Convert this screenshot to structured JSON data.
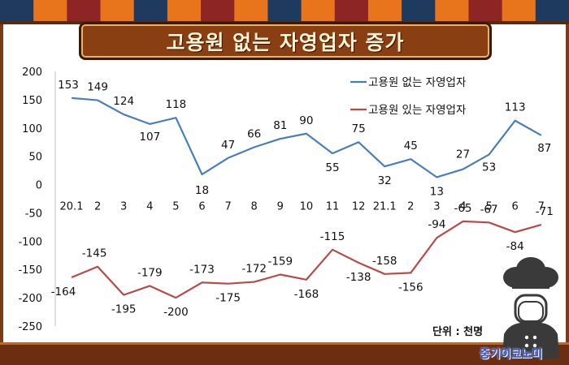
{
  "title": "고용원 없는 자영업자 증가",
  "unit_label": "단위 : 천명",
  "watermark": "중기이코노미",
  "chart_data": {
    "type": "line",
    "title": "고용원 없는 자영업자 증가",
    "categories": [
      "20.1",
      "2",
      "3",
      "4",
      "5",
      "6",
      "7",
      "8",
      "9",
      "10",
      "11",
      "12",
      "21.1",
      "2",
      "3",
      "4",
      "5",
      "6",
      "7"
    ],
    "ylim": [
      -250,
      200
    ],
    "yticks": [
      200,
      150,
      100,
      50,
      0,
      -50,
      -100,
      -150,
      -200,
      -250
    ],
    "grid": false,
    "legend_position": "top-right",
    "series": [
      {
        "name": "고용원 없는 자영업자",
        "color": "#4a7ebb",
        "values": [
          153,
          149,
          124,
          107,
          118,
          18,
          47,
          66,
          81,
          90,
          55,
          75,
          32,
          45,
          13,
          27,
          53,
          113,
          87
        ]
      },
      {
        "name": "고용원 있는 자영업자",
        "color": "#b84a4a",
        "values": [
          -164,
          -145,
          -195,
          -179,
          -200,
          -173,
          -175,
          -172,
          -159,
          -168,
          -115,
          -138,
          -158,
          -156,
          -94,
          -65,
          -67,
          -84,
          -71
        ]
      }
    ]
  }
}
